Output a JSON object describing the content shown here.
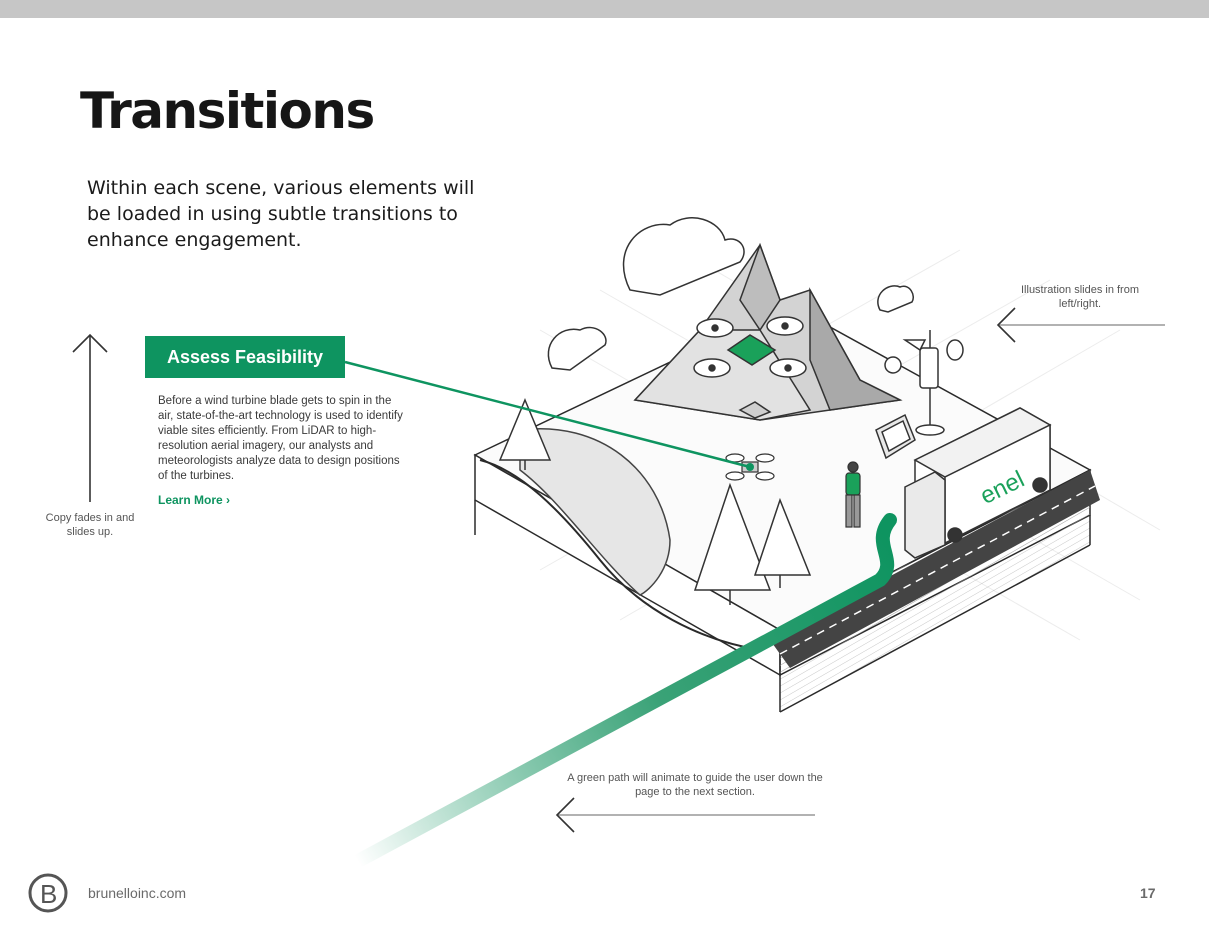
{
  "page": {
    "title": "Transitions",
    "intro": "Within each scene, various elements will be loaded in using subtle transitions to enhance engagement."
  },
  "card": {
    "title": "Assess Feasibility",
    "body": "Before a wind turbine blade gets to spin in the air, state-of-the-art technology is used to identify viable sites efficiently. From LiDAR to high-resolution aerial imagery, our analysts and meteorologists analyze data to design positions of the turbines.",
    "link": "Learn More ›"
  },
  "annotations": {
    "left": "Copy fades in and slides up.",
    "right": "Illustration slides in from left/right.",
    "bottom": "A green path will animate to guide the user down the page to the next section."
  },
  "illustration": {
    "truck_label": "enel"
  },
  "footer": {
    "logo_letter": "B",
    "site": "brunelloinc.com",
    "page_number": "17"
  },
  "colors": {
    "accent": "#0e9460",
    "annotation_text": "#555555",
    "footer_text": "#6a6a6a"
  }
}
